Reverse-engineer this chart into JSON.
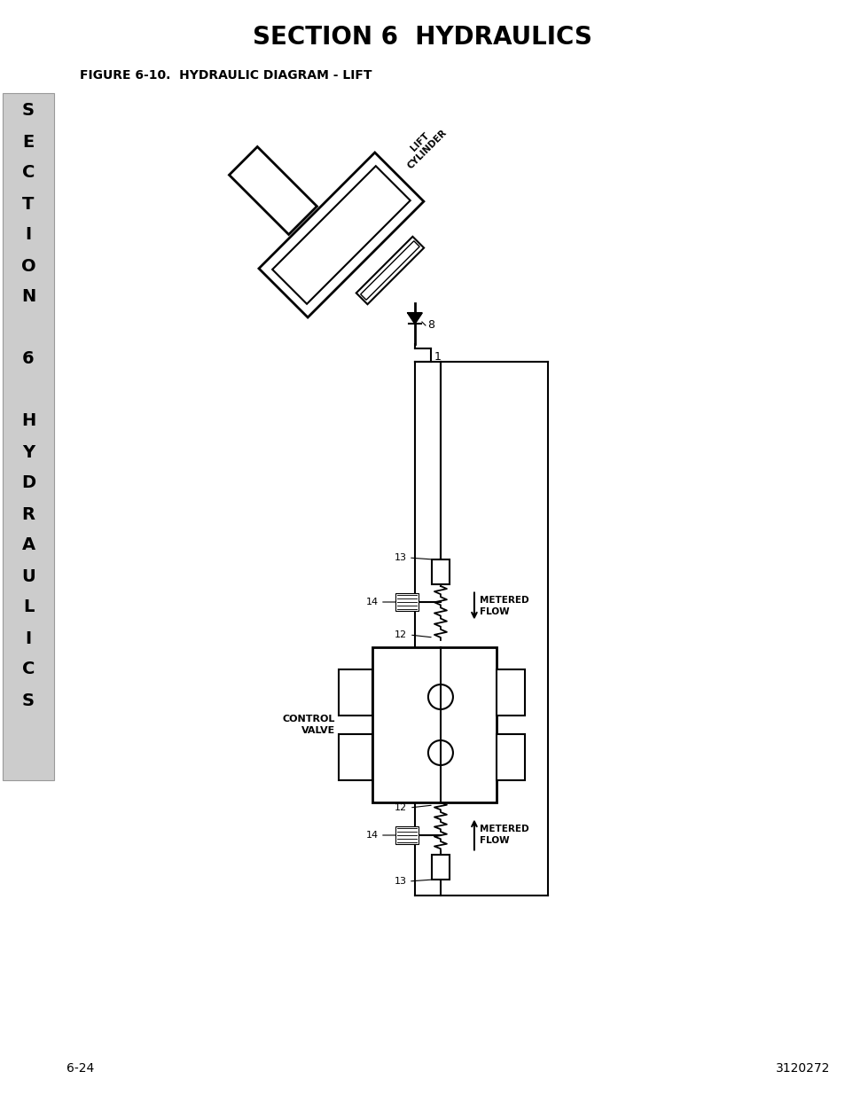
{
  "title": "SECTION 6  HYDRAULICS",
  "subtitle": "FIGURE 6-10.  HYDRAULIC DIAGRAM - LIFT",
  "page_left": "6-24",
  "page_right": "3120272",
  "bg_color": "#ffffff",
  "line_color": "#000000",
  "sidebar_color": "#cccccc",
  "side_letters": [
    "S",
    "E",
    "C",
    "T",
    "I",
    "O",
    "N",
    "",
    "6",
    "",
    "H",
    "Y",
    "D",
    "R",
    "A",
    "U",
    "L",
    "I",
    "C",
    "S"
  ]
}
